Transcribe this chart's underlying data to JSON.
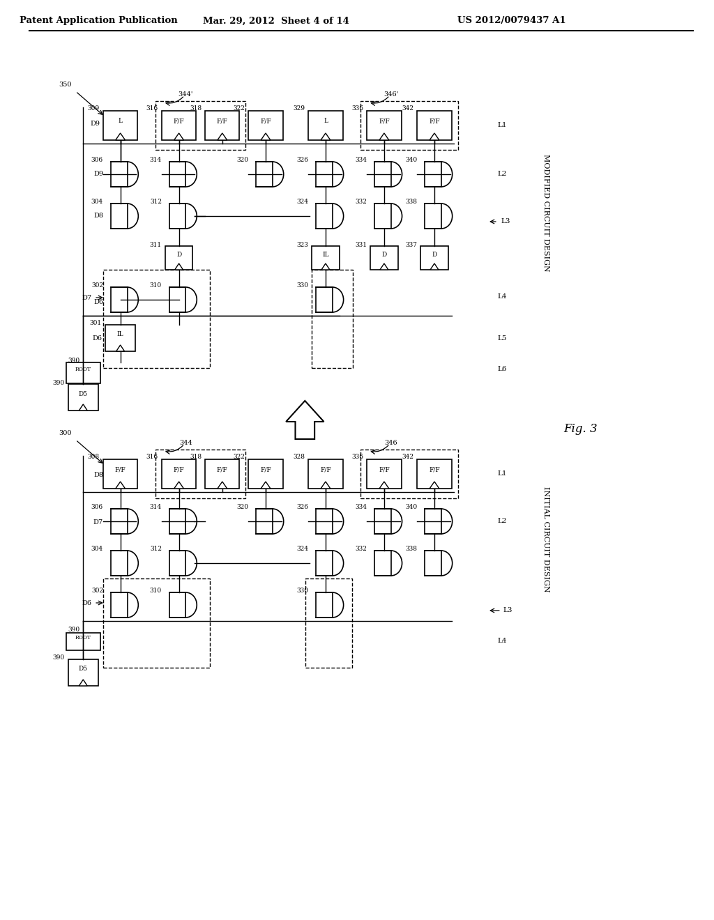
{
  "header1": "Patent Application Publication",
  "header2": "Mar. 29, 2012  Sheet 4 of 14",
  "header3": "US 2012/0079437 A1",
  "fig_label": "Fig. 3",
  "top_label": "MODIFIED CIRCUIT DESIGN",
  "bot_label": "INITIAL CIRCUIT DESIGN",
  "bg": "#ffffff"
}
